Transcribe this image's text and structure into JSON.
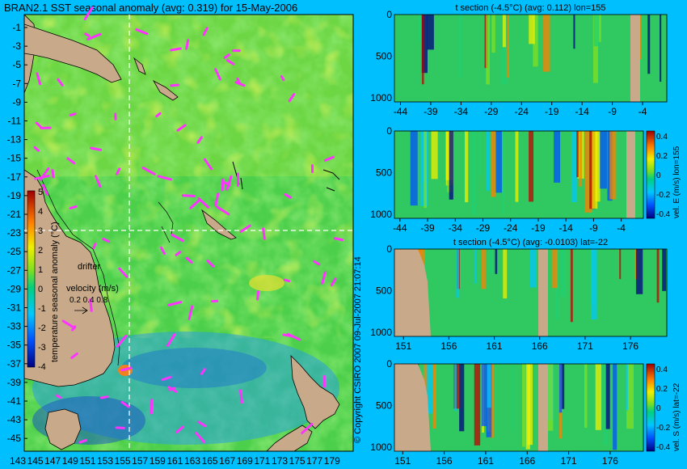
{
  "main_title": "BRAN2.1 SST seasonal anomaly (avg: 0.319) for 15-May-2006",
  "copyright": "© Copyright CSIRO 2007  09-Jul-2007 21:07:14",
  "colors": {
    "background": "#00bfff",
    "land": "#c8aa8a",
    "vector": "#ff33ff",
    "crosshair": "#ffffff"
  },
  "chart_data": [
    {
      "type": "heatmap",
      "title": "BRAN2.1 SST seasonal anomaly (avg: 0.319) for 15-May-2006",
      "y_ticks": [
        "-1",
        "-3",
        "-5",
        "-7",
        "-9",
        "-11",
        "-13",
        "-15",
        "-17",
        "-19",
        "-21",
        "-23",
        "-25",
        "-27",
        "-29",
        "-31",
        "-33",
        "-35",
        "-37",
        "-39",
        "-41",
        "-43",
        "-45"
      ],
      "x_ticks": [
        "143",
        "145",
        "147",
        "149",
        "151",
        "153",
        "155",
        "157",
        "159",
        "161",
        "163",
        "165",
        "167",
        "169",
        "171",
        "173",
        "175",
        "177",
        "179"
      ],
      "xlim": [
        143,
        180
      ],
      "ylim": [
        -45,
        0
      ],
      "crosshair": {
        "lon": 155,
        "lat": -22
      },
      "colorbar": {
        "label": "temperature seasonal anomaly (°C)",
        "ticks": [
          "5",
          "4",
          "3",
          "2",
          "1",
          "0",
          "-1",
          "-2",
          "-3",
          "-4"
        ],
        "range": [
          -4,
          5
        ]
      },
      "legend": {
        "drifter_label": "drifter",
        "velocity_label": "velocity (m/s)",
        "velocity_scale": "0.2 0.4 0.8"
      }
    },
    {
      "type": "heatmap",
      "title": "t section (-4.5°C) (avg: 0.112) lon=155",
      "x_ticks": [
        "-44",
        "-39",
        "-34",
        "-29",
        "-24",
        "-19",
        "-14",
        "-9",
        "-4"
      ],
      "y_ticks": [
        "0",
        "500",
        "1000"
      ],
      "xlim": [
        -45,
        0
      ],
      "ylim": [
        1050,
        0
      ]
    },
    {
      "type": "heatmap",
      "title": "",
      "x_ticks": [
        "-44",
        "-39",
        "-34",
        "-29",
        "-24",
        "-19",
        "-14",
        "-9",
        "-4"
      ],
      "y_ticks": [
        "0",
        "500",
        "1000"
      ],
      "xlim": [
        -45,
        0
      ],
      "ylim": [
        1050,
        0
      ],
      "colorbar": {
        "label": "vel. E (m/s) lon=155",
        "ticks": [
          "0.4",
          "0.2",
          "0",
          "-0.2",
          "-0.4"
        ],
        "range": [
          -0.4,
          0.4
        ]
      }
    },
    {
      "type": "heatmap",
      "title": "t section (-4.5°C) (avg: -0.0103) lat=-22",
      "x_ticks": [
        "151",
        "156",
        "161",
        "166",
        "171",
        "176"
      ],
      "y_ticks": [
        "0",
        "500",
        "1000"
      ],
      "xlim": [
        150,
        180
      ],
      "ylim": [
        1050,
        0
      ]
    },
    {
      "type": "heatmap",
      "title": "",
      "x_ticks": [
        "151",
        "156",
        "161",
        "166",
        "171",
        "176"
      ],
      "y_ticks": [
        "0",
        "500",
        "1000"
      ],
      "xlim": [
        150,
        180
      ],
      "ylim": [
        1050,
        0
      ],
      "colorbar": {
        "label": "vel. S (m/s) lat=-22",
        "ticks": [
          "0.4",
          "0.2",
          "0",
          "-0.2",
          "-0.4"
        ],
        "range": [
          -0.4,
          0.4
        ]
      }
    }
  ]
}
